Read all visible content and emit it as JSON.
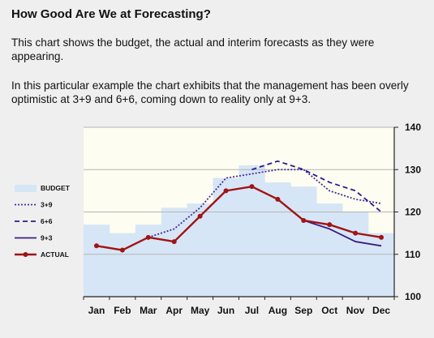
{
  "header": {
    "title": "How Good Are We at Forecasting?",
    "paragraph1": "This chart shows the budget, the actual and interim forecasts as they were appearing.",
    "paragraph2": "In this particular example the chart exhibits that the management has been overly optimistic at 3+9 and 6+6, coming down to reality only at 9+3."
  },
  "chart_data": {
    "type": "line",
    "categories": [
      "Jan",
      "Feb",
      "Mar",
      "Apr",
      "May",
      "Jun",
      "Jul",
      "Aug",
      "Sep",
      "Oct",
      "Nov",
      "Dec"
    ],
    "ylim": [
      100,
      140
    ],
    "yticks": [
      100,
      110,
      120,
      130,
      140
    ],
    "y_axis_side": "right",
    "grid": true,
    "legend_position": "left",
    "series": [
      {
        "name": "BUDGET",
        "style": "bar",
        "color": "#d6e6f6",
        "values": [
          117,
          115,
          117,
          121,
          122,
          128,
          131,
          127,
          126,
          122,
          120,
          115
        ]
      },
      {
        "name": "3+9",
        "style": "dotted",
        "color": "#4a2c96",
        "values": [
          null,
          null,
          114,
          116,
          121,
          128,
          129,
          130,
          130,
          125,
          123,
          122
        ]
      },
      {
        "name": "6+6",
        "style": "dashed",
        "color": "#2d1a8c",
        "values": [
          null,
          null,
          null,
          null,
          null,
          null,
          130,
          132,
          130,
          127,
          125,
          120
        ]
      },
      {
        "name": "9+3",
        "style": "solid",
        "color": "#3b1e82",
        "values": [
          null,
          null,
          null,
          null,
          null,
          null,
          null,
          null,
          118,
          116,
          113,
          112
        ]
      },
      {
        "name": "ACTUAL",
        "style": "solid-markers",
        "color": "#a01414",
        "values": [
          112,
          111,
          114,
          113,
          119,
          125,
          126,
          123,
          118,
          117,
          115,
          114
        ]
      }
    ]
  }
}
